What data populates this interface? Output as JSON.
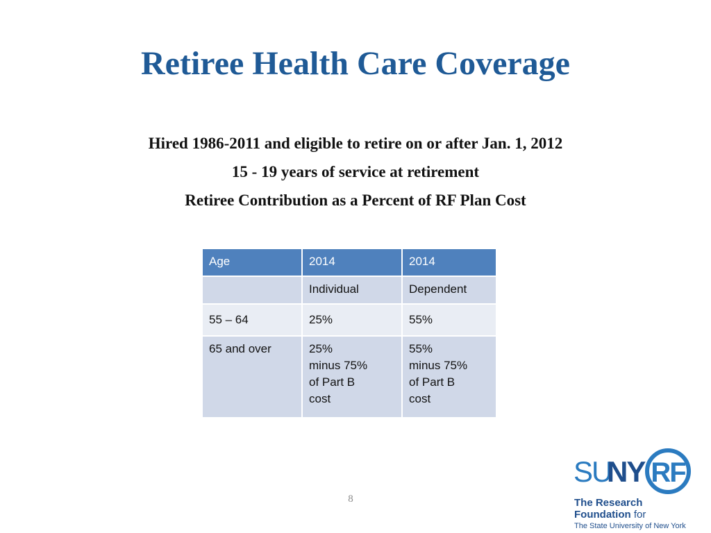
{
  "slide": {
    "title": "Retiree Health Care Coverage",
    "subtitle_lines": [
      "Hired 1986-2011 and eligible to retire on or after Jan. 1, 2012",
      "15 - 19 years of service at retirement",
      "Retiree Contribution as a Percent of RF Plan Cost"
    ],
    "page_number": "8"
  },
  "table": {
    "headers": [
      "Age",
      "2014",
      "2014"
    ],
    "rows": [
      [
        "",
        "Individual",
        "Dependent"
      ],
      [
        "55 – 64",
        "25%",
        "55%"
      ],
      [
        "65 and over",
        [
          "25%",
          "minus 75%",
          "of Part B",
          "cost"
        ],
        [
          "55%",
          "minus 75%",
          "of Part B",
          "cost"
        ]
      ]
    ]
  },
  "logo": {
    "su": "SU",
    "ny": "NY",
    "rf": "RF",
    "line1": "The Research",
    "line2_bold": "Foundation",
    "line2_rest": " for",
    "line3": "The State University of New York",
    "colors": {
      "su": "#2b7bc0",
      "ny": "#1f4e8c",
      "rf": "#2b7bc0",
      "text": "#1f4e8c"
    }
  },
  "colors": {
    "title": "#1f5a96",
    "header_bg": "#4f81bd",
    "row_alt": "#d0d8e8",
    "row_light": "#e9edf4"
  }
}
